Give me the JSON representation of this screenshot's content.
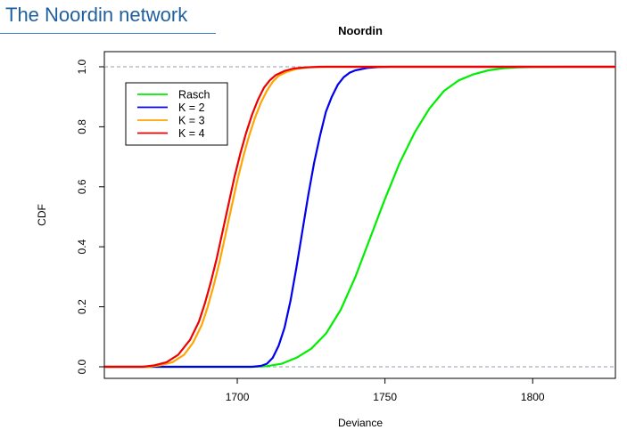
{
  "slide": {
    "title": "The Noordin network"
  },
  "colors": {
    "title": "#1f5f9e",
    "Rasch": "#00ee00",
    "K2": "#0000ee",
    "K3": "#ffa500",
    "K4": "#ee0000",
    "reference_line": "#a8b0bc"
  },
  "chart_data": {
    "type": "line",
    "title": "Noordin",
    "xlabel": "Deviance",
    "ylabel": "CDF",
    "xlim": [
      1655,
      1828
    ],
    "ylim": [
      0,
      1
    ],
    "xticks": [
      "1700",
      "1750",
      "1800"
    ],
    "yticks": [
      "0.0",
      "0.2",
      "0.4",
      "0.6",
      "0.8",
      "1.0"
    ],
    "reference_lines_y": [
      0,
      1
    ],
    "grid": false,
    "legend_position": "top-left",
    "series": [
      {
        "name": "Rasch",
        "x": [
          1655,
          1700,
          1705,
          1710,
          1715,
          1720,
          1725,
          1730,
          1735,
          1740,
          1745,
          1750,
          1755,
          1760,
          1765,
          1770,
          1775,
          1780,
          1785,
          1790,
          1795,
          1800,
          1810,
          1828
        ],
        "y": [
          0,
          0,
          0,
          0.002,
          0.01,
          0.03,
          0.06,
          0.11,
          0.19,
          0.3,
          0.43,
          0.56,
          0.68,
          0.78,
          0.86,
          0.92,
          0.955,
          0.975,
          0.988,
          0.995,
          0.998,
          0.999,
          1,
          1
        ]
      },
      {
        "name": "K = 2",
        "x": [
          1655,
          1705,
          1708,
          1710,
          1712,
          1714,
          1716,
          1718,
          1720,
          1722,
          1724,
          1726,
          1728,
          1730,
          1732,
          1734,
          1736,
          1738,
          1740,
          1744,
          1748,
          1752,
          1760,
          1828
        ],
        "y": [
          0,
          0,
          0.003,
          0.01,
          0.03,
          0.07,
          0.13,
          0.22,
          0.33,
          0.45,
          0.57,
          0.68,
          0.77,
          0.85,
          0.9,
          0.94,
          0.965,
          0.98,
          0.988,
          0.996,
          0.999,
          1,
          1,
          1
        ]
      },
      {
        "name": "K = 3",
        "x": [
          1655,
          1670,
          1674,
          1678,
          1682,
          1685,
          1688,
          1690,
          1692,
          1694,
          1696,
          1698,
          1700,
          1702,
          1704,
          1706,
          1708,
          1710,
          1712,
          1714,
          1717,
          1720,
          1724,
          1730,
          1740,
          1828
        ],
        "y": [
          0,
          0,
          0.005,
          0.015,
          0.04,
          0.08,
          0.14,
          0.2,
          0.27,
          0.35,
          0.44,
          0.53,
          0.62,
          0.7,
          0.77,
          0.83,
          0.88,
          0.92,
          0.95,
          0.97,
          0.984,
          0.993,
          0.998,
          1,
          1,
          1
        ]
      },
      {
        "name": "K = 4",
        "x": [
          1655,
          1668,
          1672,
          1676,
          1680,
          1684,
          1687,
          1689,
          1691,
          1693,
          1695,
          1697,
          1699,
          1701,
          1703,
          1705,
          1707,
          1709,
          1711,
          1713,
          1716,
          1719,
          1723,
          1728,
          1740,
          1828
        ],
        "y": [
          0,
          0,
          0.005,
          0.015,
          0.04,
          0.09,
          0.15,
          0.21,
          0.28,
          0.36,
          0.45,
          0.54,
          0.63,
          0.71,
          0.78,
          0.84,
          0.89,
          0.93,
          0.955,
          0.972,
          0.986,
          0.994,
          0.998,
          1,
          1,
          1
        ]
      }
    ]
  }
}
